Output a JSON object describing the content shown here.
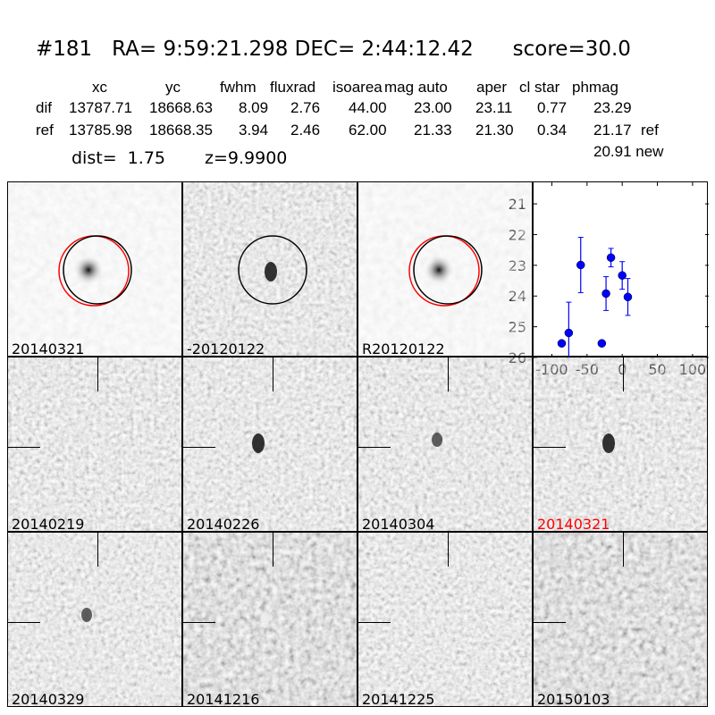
{
  "header": {
    "title": "#181   RA= 9:59:21.298 DEC= 2:44:12.42      score=30.0"
  },
  "table": {
    "columns": [
      "xc",
      "yc",
      "fwhm",
      "fluxrad",
      "isoarea",
      "mag auto",
      "aper",
      "cl star",
      "phmag"
    ],
    "rows": [
      {
        "label": "dif",
        "values": [
          "13787.71",
          "18668.63",
          "8.09",
          "2.76",
          "44.00",
          "23.00",
          "23.11",
          "0.77",
          "23.29"
        ],
        "note": ""
      },
      {
        "label": "ref",
        "values": [
          "13785.98",
          "18668.35",
          "3.94",
          "2.46",
          "62.00",
          "21.33",
          "21.30",
          "0.34",
          "21.17"
        ],
        "note": "ref"
      }
    ],
    "extra": "20.91 new",
    "dist": "dist=  1.75",
    "z": "z=9.9900"
  },
  "panels": [
    {
      "label": "20140321",
      "tone": "light",
      "circles": true
    },
    {
      "label": "-20120122",
      "tone": "mid",
      "circles": "black"
    },
    {
      "label": "R20120122",
      "tone": "light",
      "circles": true
    },
    {
      "label": "20140219",
      "tone": "mid"
    },
    {
      "label": "20140226",
      "tone": "mid"
    },
    {
      "label": "20140304",
      "tone": "mid"
    },
    {
      "label": "20140321",
      "tone": "mid",
      "label_color": "#ff0000"
    },
    {
      "label": "20140329",
      "tone": "mid"
    },
    {
      "label": "20141216",
      "tone": "dark"
    },
    {
      "label": "20141225",
      "tone": "mid"
    },
    {
      "label": "20150103",
      "tone": "dark"
    }
  ],
  "chart_data": {
    "type": "scatter",
    "x": [
      -86,
      -76,
      -59,
      -29,
      -23,
      -16,
      0,
      8
    ],
    "y": [
      25.54,
      25.2,
      22.99,
      25.54,
      23.92,
      22.75,
      23.33,
      24.03
    ],
    "yerr": [
      0.05,
      1.0,
      0.9,
      0.05,
      0.55,
      0.3,
      0.45,
      0.6
    ],
    "xlim": [
      -126,
      123
    ],
    "ylim": [
      26,
      20.3
    ],
    "y_inverted": true,
    "xticks": [
      "-100",
      "-50",
      "0",
      "50",
      "100"
    ],
    "xtick_values": [
      -100,
      -50,
      0,
      50,
      100
    ],
    "yticks": [
      "21",
      "22",
      "23",
      "24",
      "25",
      "26"
    ],
    "ytick_values": [
      21,
      22,
      23,
      24,
      25,
      26
    ],
    "color": "#0000ff",
    "grid": false
  }
}
